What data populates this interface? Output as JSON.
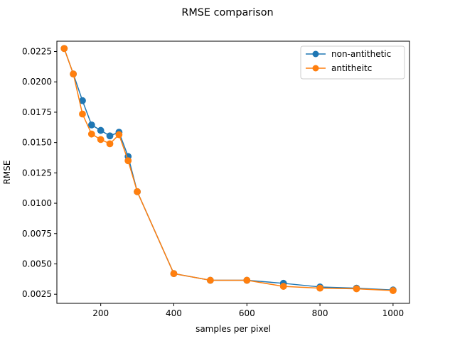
{
  "chart_data": {
    "type": "line",
    "title": "RMSE comparison",
    "xlabel": "samples per pixel",
    "ylabel": "RMSE",
    "xlim": [
      80,
      1045
    ],
    "ylim": [
      0.00175,
      0.02335
    ],
    "xticks": [
      200,
      400,
      600,
      800,
      1000
    ],
    "xtick_labels": [
      "200",
      "400",
      "600",
      "800",
      "1000"
    ],
    "yticks": [
      0.0025,
      0.005,
      0.0075,
      0.01,
      0.0125,
      0.015,
      0.0175,
      0.02,
      0.0225
    ],
    "ytick_labels": [
      "0.0025",
      "0.0050",
      "0.0075",
      "0.0100",
      "0.0125",
      "0.0150",
      "0.0175",
      "0.0200",
      "0.0225"
    ],
    "grid": false,
    "legend_position": "top-right",
    "x": [
      100,
      125,
      150,
      175,
      200,
      225,
      250,
      275,
      300,
      400,
      500,
      600,
      700,
      800,
      900,
      1000
    ],
    "series": [
      {
        "name": "non-antithetic",
        "color": "#1f77b4",
        "values": [
          0.02275,
          0.02065,
          0.01845,
          0.01645,
          0.016,
          0.01555,
          0.01585,
          0.01385,
          0.01095,
          0.0042,
          0.00365,
          0.00365,
          0.0034,
          0.0031,
          0.003,
          0.00285
        ]
      },
      {
        "name": "antitheitc",
        "color": "#ff7f0e",
        "values": [
          0.02275,
          0.02065,
          0.01735,
          0.0157,
          0.01525,
          0.0149,
          0.01565,
          0.0135,
          0.01095,
          0.0042,
          0.00365,
          0.00365,
          0.00315,
          0.003,
          0.00295,
          0.0028
        ]
      }
    ]
  }
}
